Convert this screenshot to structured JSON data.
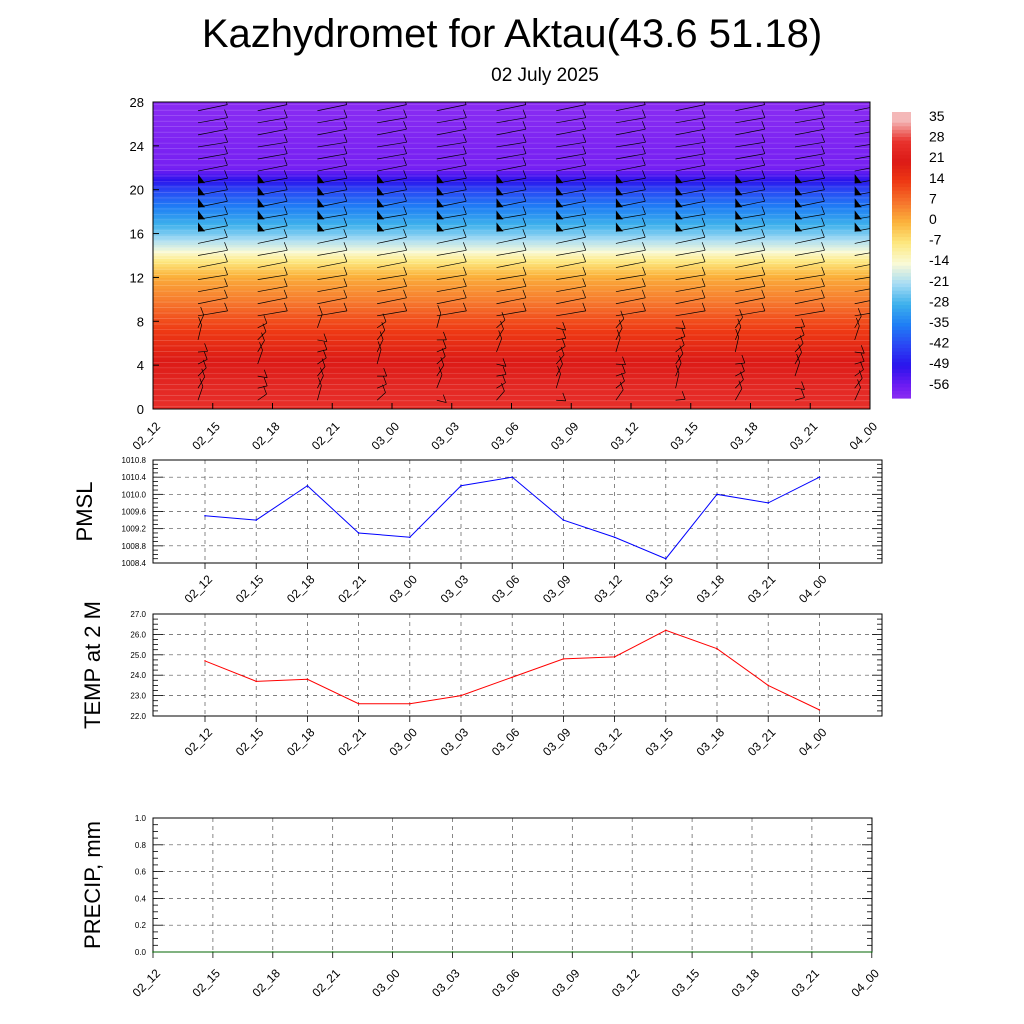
{
  "title": "Kazhydromet for Aktau(43.6 51.18)",
  "subtitle": "02 July 2025",
  "time_labels": [
    "02_12",
    "02_15",
    "02_18",
    "02_21",
    "03_00",
    "03_03",
    "03_06",
    "03_09",
    "03_12",
    "03_15",
    "03_18",
    "03_21",
    "04_00"
  ],
  "chart_data": [
    {
      "type": "heatmap",
      "x": [
        "02_12",
        "02_15",
        "02_18",
        "02_21",
        "03_00",
        "03_03",
        "03_06",
        "03_09",
        "03_12",
        "03_15",
        "03_18",
        "03_21",
        "04_00"
      ],
      "ylim": [
        0,
        28
      ],
      "yticks": [
        0,
        4,
        8,
        12,
        16,
        20,
        24,
        28
      ],
      "colorbar": {
        "labels": [
          "35",
          "28",
          "21",
          "14",
          "7",
          "0",
          "-7",
          "-14",
          "-21",
          "-28",
          "-35",
          "-42",
          "-49",
          "-56"
        ],
        "stops": [
          {
            "value": 35,
            "color": "#f4b8b8"
          },
          {
            "value": 28,
            "color": "#e9332e"
          },
          {
            "value": 21,
            "color": "#dc1a16"
          },
          {
            "value": 14,
            "color": "#ee3a14"
          },
          {
            "value": 7,
            "color": "#f6742c"
          },
          {
            "value": 0,
            "color": "#fbb43c"
          },
          {
            "value": -7,
            "color": "#fde880"
          },
          {
            "value": -14,
            "color": "#fafad6"
          },
          {
            "value": -21,
            "color": "#a6dcf4"
          },
          {
            "value": -28,
            "color": "#3cb0ec"
          },
          {
            "value": -35,
            "color": "#1f7ef5"
          },
          {
            "value": -42,
            "color": "#2a46f4"
          },
          {
            "value": -49,
            "color": "#2a14ec"
          },
          {
            "value": -56,
            "color": "#6f1cf2"
          },
          {
            "value": -60,
            "color": "#8a2cf2"
          }
        ]
      },
      "temperature_profile": [
        {
          "y": 0,
          "value": 27
        },
        {
          "y": 2,
          "value": 25
        },
        {
          "y": 4,
          "value": 22
        },
        {
          "y": 6,
          "value": 17
        },
        {
          "y": 8,
          "value": 12
        },
        {
          "y": 10,
          "value": 6
        },
        {
          "y": 12,
          "value": 1
        },
        {
          "y": 13.5,
          "value": -7
        },
        {
          "y": 14.5,
          "value": -15
        },
        {
          "y": 16,
          "value": -24
        },
        {
          "y": 18,
          "value": -33
        },
        {
          "y": 20,
          "value": -42
        },
        {
          "y": 21,
          "value": -50
        },
        {
          "y": 22,
          "value": -57
        },
        {
          "y": 28,
          "value": -60
        }
      ]
    },
    {
      "type": "line",
      "ylabel": "PMSL",
      "ylim": [
        1008.4,
        1010.8
      ],
      "yticks": [
        "1008.4",
        "1008.8",
        "1009.2",
        "1009.6",
        "1010.0",
        "1010.4",
        "1010.8"
      ],
      "x": [
        "02_12",
        "02_15",
        "02_18",
        "02_21",
        "03_00",
        "03_03",
        "03_06",
        "03_09",
        "03_12",
        "03_15",
        "03_18",
        "03_21",
        "04_00"
      ],
      "series": [
        {
          "color": "#0000ff",
          "values": [
            1009.5,
            1009.4,
            1010.2,
            1009.1,
            1009.0,
            1010.2,
            1010.4,
            1009.4,
            1009.0,
            1008.5,
            1010.0,
            1009.8,
            1010.4
          ]
        }
      ]
    },
    {
      "type": "line",
      "ylabel": "TEMP at 2 M",
      "ylim": [
        22.0,
        27.0
      ],
      "yticks": [
        "22.0",
        "23.0",
        "24.0",
        "25.0",
        "26.0",
        "27.0"
      ],
      "x": [
        "02_12",
        "02_15",
        "02_18",
        "02_21",
        "03_00",
        "03_03",
        "03_06",
        "03_09",
        "03_12",
        "03_15",
        "03_18",
        "03_21",
        "04_00"
      ],
      "series": [
        {
          "color": "#ff0000",
          "values": [
            24.7,
            23.7,
            23.8,
            22.6,
            22.6,
            23.0,
            23.9,
            24.8,
            24.9,
            26.2,
            25.3,
            23.5,
            22.3
          ]
        }
      ]
    },
    {
      "type": "line",
      "ylabel": "PRECIP, mm",
      "ylim": [
        0.0,
        1.0
      ],
      "yticks": [
        "0.0",
        "0.2",
        "0.4",
        "0.6",
        "0.8",
        "1.0"
      ],
      "x": [
        "02_12",
        "02_15",
        "02_18",
        "02_21",
        "03_00",
        "03_03",
        "03_06",
        "03_09",
        "03_12",
        "03_15",
        "03_18",
        "03_21",
        "04_00"
      ],
      "series": [
        {
          "color": "#006400",
          "values": [
            0,
            0,
            0,
            0,
            0,
            0,
            0,
            0,
            0,
            0,
            0,
            0,
            0
          ]
        }
      ]
    }
  ]
}
